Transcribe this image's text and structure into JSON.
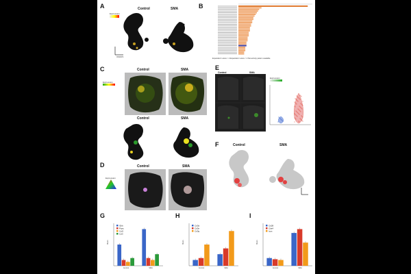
{
  "panels": {
    "A": {
      "letter": "A",
      "control": "Control",
      "sma": "SMA",
      "legend_title": "Expression",
      "axis_x": "UMAP1",
      "axis_y": "UMAP2"
    },
    "B": {
      "letter": "B",
      "footer": "Expanded z-score > 2  Expanded z-score < 2  Not activity pattern available"
    },
    "C": {
      "letter": "C",
      "control": "Control",
      "sma": "SMA",
      "control2": "Control",
      "sma2": "SMA",
      "legend_title": "Expression"
    },
    "D": {
      "letter": "D",
      "control": "Control",
      "sma": "SMA",
      "legend_title": "Expression"
    },
    "E": {
      "letter": "E",
      "control": "Control",
      "sma": "SMA",
      "legend_title": "Expression"
    },
    "F": {
      "letter": "F",
      "control": "Control",
      "sma": "SMA",
      "axis_x": "UMAP1",
      "axis_y": "UMAP2"
    },
    "G": {
      "letter": "G",
      "ylabel": "Mean"
    },
    "H": {
      "letter": "H",
      "ylabel": "Mean"
    },
    "I": {
      "letter": "I",
      "ylabel": "Mean"
    }
  },
  "colors": {
    "orange": "#f0a870",
    "orange_dark": "#e07a30",
    "blue": "#3a66c8",
    "red": "#d83a2a",
    "green": "#2a9a3a",
    "yellow_orange": "#f29a1a",
    "purple": "#4040a0"
  },
  "chart_data": [
    {
      "panel": "B",
      "type": "bar",
      "orientation": "horizontal",
      "values": [
        30,
        10,
        9,
        8.5,
        8,
        7.5,
        7,
        6.5,
        6.5,
        6,
        6,
        5.5,
        5.5,
        5,
        5,
        5,
        4.5,
        4.5,
        4.5,
        4,
        4,
        4,
        3.5,
        3.5,
        3.5,
        3,
        3,
        3,
        2.5,
        2.5
      ],
      "highlight_index": 24,
      "xlim": [
        0,
        32
      ]
    },
    {
      "panel": "G",
      "type": "bar",
      "categories": [
        "Control",
        "SMA"
      ],
      "series": [
        {
          "name": "Il2rb",
          "values": [
            0.55,
            0.95
          ]
        },
        {
          "name": "Ptprc",
          "values": [
            0.15,
            0.2
          ]
        },
        {
          "name": "Ccl5",
          "values": [
            0.1,
            0.15
          ]
        },
        {
          "name": "Cd3",
          "values": [
            0.2,
            0.3
          ]
        }
      ],
      "ylim": [
        0,
        1.1
      ]
    },
    {
      "panel": "H",
      "type": "bar",
      "categories": [
        "Control",
        "SMA"
      ],
      "series": [
        {
          "name": "Cd3d",
          "values": [
            0.15,
            0.3
          ]
        },
        {
          "name": "Cd3e",
          "values": [
            0.2,
            0.45
          ]
        },
        {
          "name": "Cd3g",
          "values": [
            0.55,
            0.9
          ]
        }
      ],
      "ylim": [
        0,
        1.1
      ]
    },
    {
      "panel": "I",
      "type": "bar",
      "categories": [
        "Control",
        "SMA"
      ],
      "series": [
        {
          "name": "Cd28",
          "values": [
            0.2,
            0.85
          ]
        },
        {
          "name": "Ctla4",
          "values": [
            0.17,
            0.95
          ]
        },
        {
          "name": "Icos",
          "values": [
            0.15,
            0.6
          ]
        }
      ],
      "ylim": [
        0,
        1.1
      ]
    }
  ]
}
